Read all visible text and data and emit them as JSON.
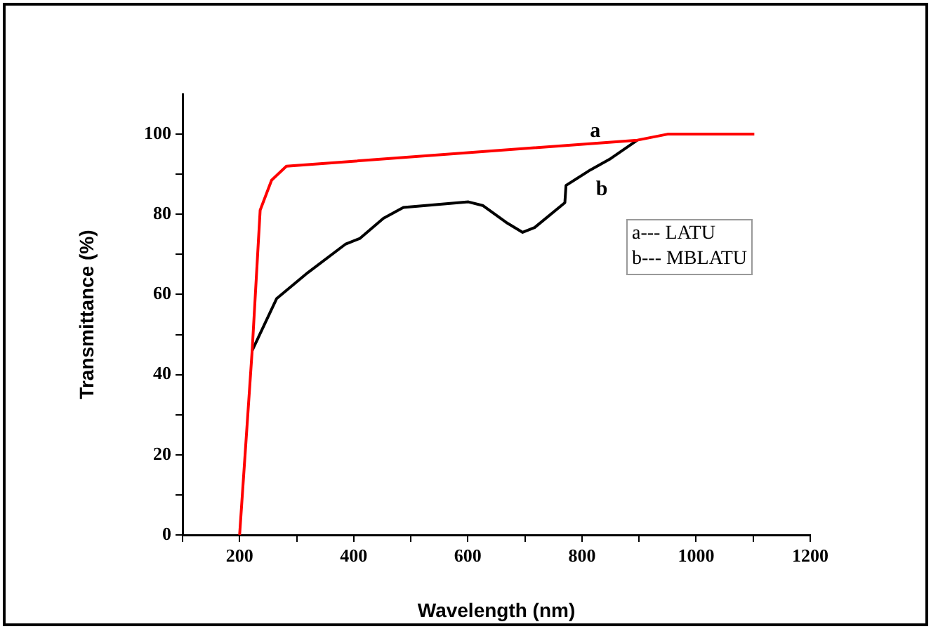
{
  "chart_data": {
    "type": "line",
    "xlabel": "Wavelength (nm)",
    "ylabel": "Transmittance (%)",
    "xlim": [
      100,
      1200
    ],
    "ylim": [
      0,
      110
    ],
    "xticks": [
      {
        "value": 100,
        "label": null
      },
      200,
      {
        "value": 300,
        "label": null
      },
      400,
      {
        "value": 500,
        "label": null
      },
      600,
      {
        "value": 700,
        "label": null
      },
      800,
      {
        "value": 900,
        "label": null
      },
      1000,
      {
        "value": 1100,
        "label": null
      },
      1200
    ],
    "yticks": [
      0,
      {
        "value": 10,
        "label": null
      },
      20,
      {
        "value": 30,
        "label": null
      },
      40,
      {
        "value": 50,
        "label": null
      },
      60,
      {
        "value": 70,
        "label": null
      },
      80,
      {
        "value": 90,
        "label": null
      },
      100
    ],
    "grid": false,
    "legend": false,
    "marker": "none",
    "line_style": "solid",
    "series": [
      {
        "name": "a",
        "color": "#ff0000",
        "x": [
          200,
          222,
          236,
          256,
          282,
          897,
          950,
          1102
        ],
        "values": [
          0,
          46,
          81,
          88.5,
          92,
          98.5,
          100,
          100
        ]
      },
      {
        "name": "b",
        "color": "#000000",
        "x": [
          222,
          265,
          320,
          386,
          411,
          452,
          487,
          601,
          626,
          667,
          696,
          717,
          770,
          772,
          815,
          848,
          897
        ],
        "values": [
          46,
          59,
          65.5,
          72.6,
          74,
          79,
          81.7,
          83.1,
          82.2,
          78,
          75.5,
          76.7,
          82.9,
          87.2,
          91.1,
          93.7,
          98.5
        ]
      }
    ],
    "annotations": [
      "a--- LATU",
      "b--- MBLATU"
    ]
  }
}
